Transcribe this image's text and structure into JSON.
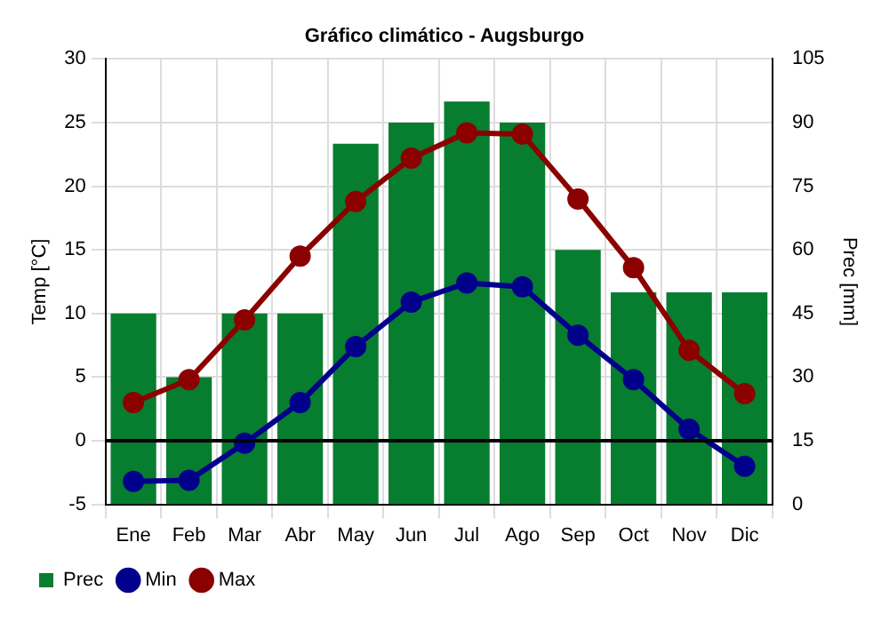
{
  "chart_data": {
    "type": "bar",
    "title": "Gráfico climático - Augsburgo",
    "ylabel": "Temp [°C]",
    "y2label": "Prec [mm]",
    "categories": [
      "Ene",
      "Feb",
      "Mar",
      "Abr",
      "May",
      "Jun",
      "Jul",
      "Ago",
      "Sep",
      "Oct",
      "Nov",
      "Dic"
    ],
    "series": [
      {
        "name": "Prec",
        "axis": "y2",
        "color": "#077d30",
        "values": [
          45,
          30,
          45,
          45,
          85,
          90,
          95,
          90,
          60,
          50,
          50,
          50
        ]
      },
      {
        "name": "Min",
        "type": "line",
        "color": "#00008b",
        "values": [
          -3.2,
          -3.1,
          -0.2,
          3.0,
          7.4,
          10.9,
          12.4,
          12.1,
          8.3,
          4.8,
          0.9,
          -2.0
        ]
      },
      {
        "name": "Max",
        "type": "line",
        "color": "#8b0000",
        "values": [
          3.0,
          4.8,
          9.5,
          14.5,
          18.8,
          22.2,
          24.2,
          24.1,
          19.0,
          13.6,
          7.1,
          3.7
        ]
      }
    ],
    "ylim": [
      -5,
      30
    ],
    "yticks": [
      -5,
      0,
      5,
      10,
      15,
      20,
      25,
      30
    ],
    "y2lim": [
      0,
      105
    ],
    "y2ticks": [
      0,
      15,
      30,
      45,
      60,
      75,
      90,
      105
    ],
    "ref_lines": [
      {
        "axis": "y",
        "value": 0,
        "color": "#000000"
      }
    ],
    "grid": true,
    "legend": "bottom",
    "marker": "circle",
    "line_style": "solid"
  }
}
